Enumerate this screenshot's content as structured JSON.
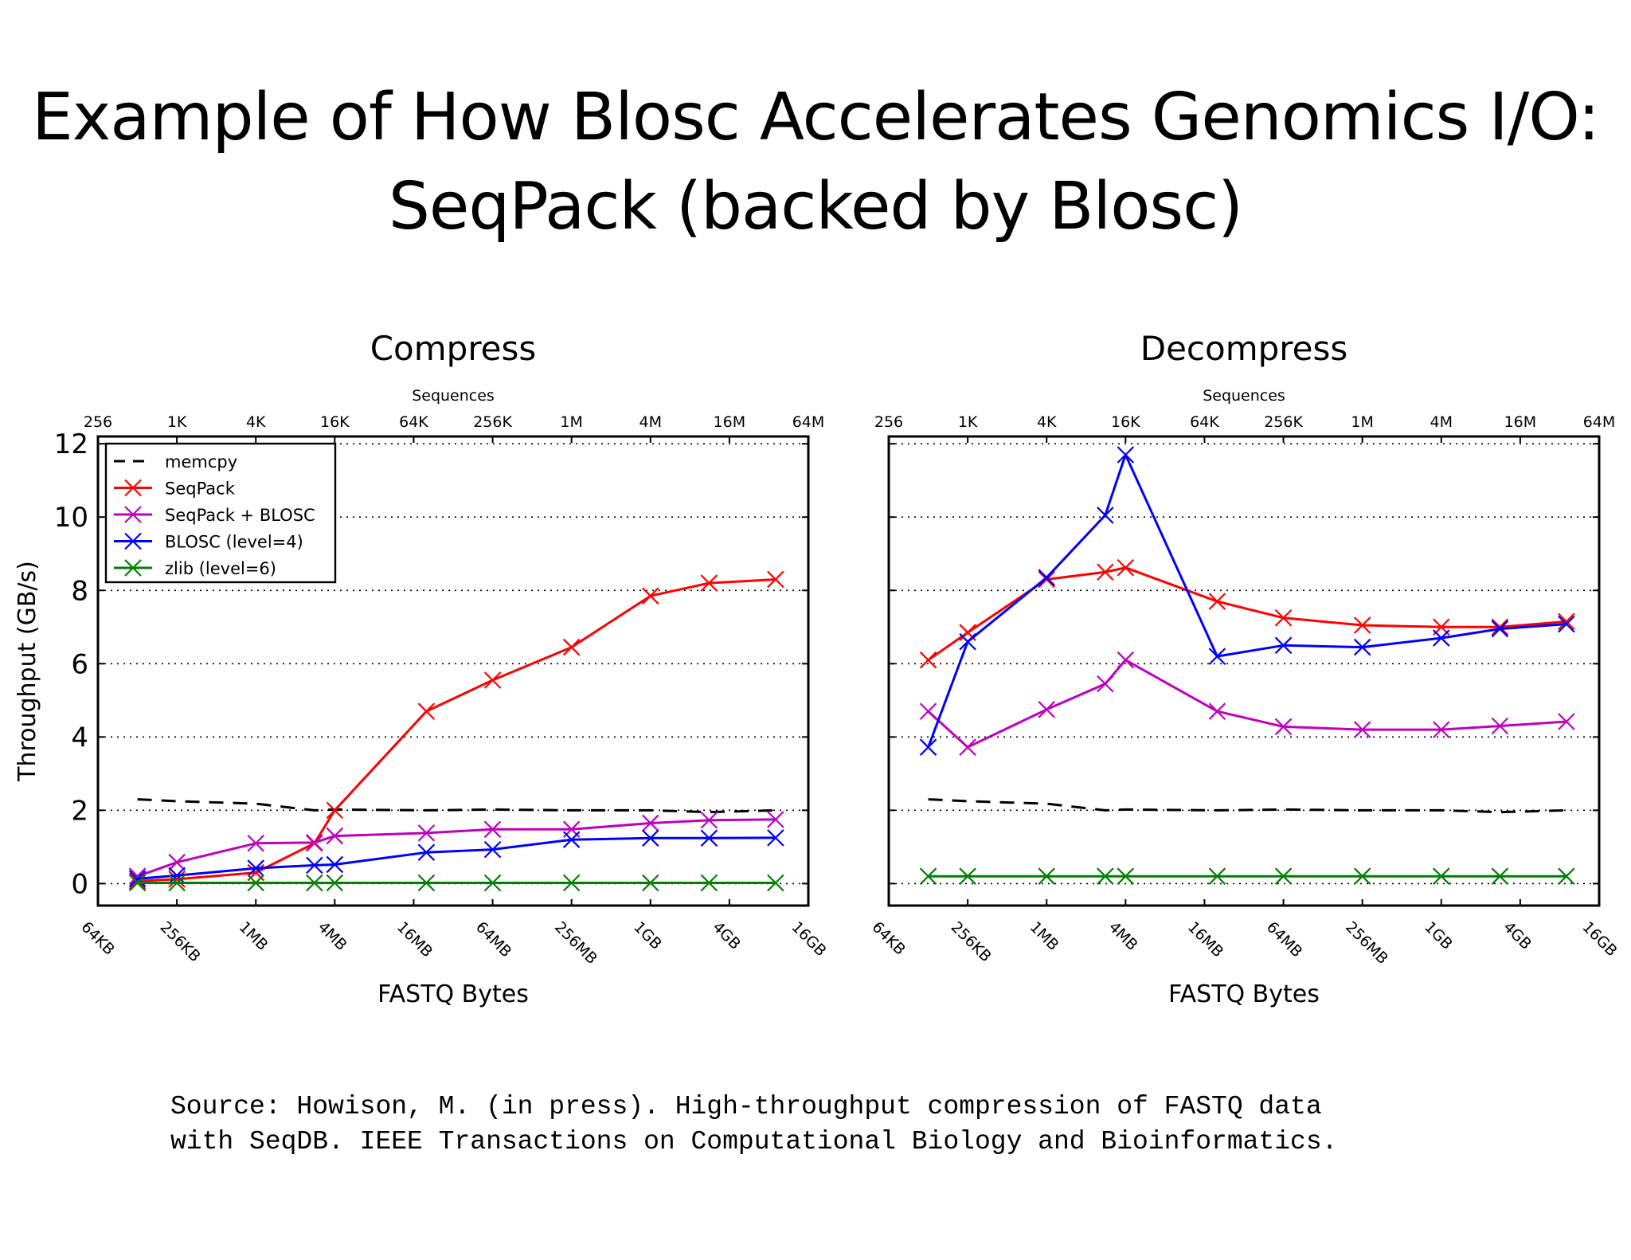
{
  "title": {
    "line1": "Example of How Blosc Accelerates Genomics I/O:",
    "line2": "SeqPack (backed by Blosc)"
  },
  "source": {
    "line1": "Source: Howison, M. (in press). High-throughput compression of FASTQ data",
    "line2": "with SeqDB. IEEE Transactions on Computational Biology and Bioinformatics."
  },
  "chart_data": [
    {
      "type": "line",
      "title": "Compress",
      "xlabel": "FASTQ Bytes",
      "x2label": "Sequences",
      "ylabel": "Throughput (GB/s)",
      "x_scale": "log2",
      "xlim": [
        "64KB",
        "16GB"
      ],
      "ylim": [
        -0.6,
        12.2
      ],
      "yticks": [
        0,
        2,
        4,
        6,
        8,
        10,
        12
      ],
      "x_ticks": [
        "64KB",
        "256KB",
        "1MB",
        "4MB",
        "16MB",
        "64MB",
        "256MB",
        "1GB",
        "4GB",
        "16GB"
      ],
      "x2_ticks": [
        "256",
        "1K",
        "4K",
        "16K",
        "64K",
        "256K",
        "1M",
        "4M",
        "16M",
        "64M"
      ],
      "grid": "horizontal dotted",
      "legend_position": "upper-left",
      "x_sizes": [
        "128KB",
        "256KB",
        "1MB",
        "2.8MB",
        "4MB",
        "20MB",
        "64MB",
        "256MB",
        "1GB",
        "2.8GB",
        "9GB"
      ],
      "series": [
        {
          "name": "memcpy",
          "color": "#000000",
          "style": "dashed",
          "markers": false,
          "values": [
            2.3,
            2.25,
            2.18,
            2.0,
            2.02,
            2.0,
            2.02,
            2.0,
            2.0,
            1.95,
            2.0
          ]
        },
        {
          "name": "SeqPack",
          "color": "#ff0000",
          "style": "solid",
          "markers": true,
          "values": [
            0.07,
            0.12,
            0.3,
            1.1,
            2.0,
            4.7,
            5.55,
            6.45,
            7.85,
            8.2,
            8.3
          ]
        },
        {
          "name": "SeqPack + BLOSC",
          "color": "#bf00bf",
          "style": "solid",
          "markers": true,
          "values": [
            0.2,
            0.58,
            1.1,
            1.12,
            1.3,
            1.38,
            1.48,
            1.48,
            1.65,
            1.73,
            1.75
          ]
        },
        {
          "name": "BLOSC (level=4)",
          "color": "#0000ff",
          "style": "solid",
          "markers": true,
          "values": [
            0.13,
            0.22,
            0.42,
            0.5,
            0.52,
            0.85,
            0.93,
            1.2,
            1.24,
            1.24,
            1.25
          ]
        },
        {
          "name": "zlib (level=6)",
          "color": "#008000",
          "style": "solid",
          "markers": true,
          "values": [
            0.02,
            0.02,
            0.02,
            0.02,
            0.02,
            0.02,
            0.02,
            0.02,
            0.02,
            0.02,
            0.02
          ]
        }
      ]
    },
    {
      "type": "line",
      "title": "Decompress",
      "xlabel": "FASTQ Bytes",
      "x2label": "Sequences",
      "x_scale": "log2",
      "xlim": [
        "64KB",
        "16GB"
      ],
      "ylim": [
        -0.6,
        12.2
      ],
      "yticks": [
        0,
        2,
        4,
        6,
        8,
        10,
        12
      ],
      "x_ticks": [
        "64KB",
        "256KB",
        "1MB",
        "4MB",
        "16MB",
        "64MB",
        "256MB",
        "1GB",
        "4GB",
        "16GB"
      ],
      "x2_ticks": [
        "256",
        "1K",
        "4K",
        "16K",
        "64K",
        "256K",
        "1M",
        "4M",
        "16M",
        "64M"
      ],
      "grid": "horizontal dotted",
      "x_sizes": [
        "128KB",
        "256KB",
        "1MB",
        "2.8MB",
        "4MB",
        "20MB",
        "64MB",
        "256MB",
        "1GB",
        "2.8GB",
        "9GB"
      ],
      "series": [
        {
          "name": "memcpy",
          "color": "#000000",
          "style": "dashed",
          "markers": false,
          "values": [
            2.3,
            2.25,
            2.18,
            2.0,
            2.02,
            2.0,
            2.02,
            2.0,
            2.0,
            1.95,
            2.0
          ]
        },
        {
          "name": "SeqPack",
          "color": "#ff0000",
          "style": "solid",
          "markers": true,
          "values": [
            6.1,
            6.85,
            8.3,
            8.5,
            8.62,
            7.7,
            7.25,
            7.05,
            7.0,
            7.0,
            7.15
          ]
        },
        {
          "name": "SeqPack + BLOSC",
          "color": "#bf00bf",
          "style": "solid",
          "markers": true,
          "values": [
            4.7,
            3.72,
            4.75,
            5.45,
            6.1,
            4.7,
            4.28,
            4.2,
            4.2,
            4.3,
            4.42
          ]
        },
        {
          "name": "BLOSC (level=4)",
          "color": "#0000ff",
          "style": "solid",
          "markers": true,
          "values": [
            3.72,
            6.6,
            8.35,
            10.05,
            11.7,
            6.2,
            6.5,
            6.45,
            6.7,
            6.95,
            7.08
          ]
        },
        {
          "name": "zlib (level=6)",
          "color": "#008000",
          "style": "solid",
          "markers": true,
          "values": [
            0.2,
            0.2,
            0.2,
            0.2,
            0.2,
            0.2,
            0.2,
            0.2,
            0.2,
            0.2,
            0.2
          ]
        }
      ]
    }
  ]
}
